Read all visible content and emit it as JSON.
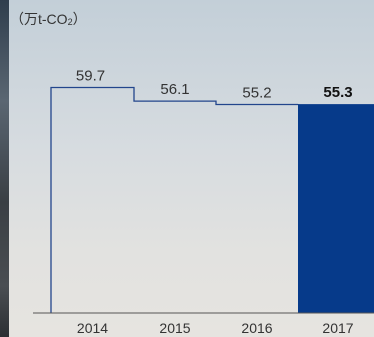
{
  "chart_data": {
    "type": "bar",
    "unit_label": "（万t-CO",
    "unit_sub": "2",
    "unit_suffix": "）",
    "categories": [
      "2014",
      "2015",
      "2016",
      "2017"
    ],
    "values": [
      59.7,
      56.1,
      55.2,
      55.3
    ],
    "value_labels": [
      "59.7",
      "56.1",
      "55.2",
      "55.3"
    ],
    "highlight_index": 3,
    "title": "",
    "xlabel": "",
    "ylabel": "",
    "grid": false,
    "legend": "none",
    "colors": {
      "highlight_fill": "#063a8a",
      "outline": "#22458c",
      "axis": "#555555",
      "text": "#333333",
      "highlight_text": "#111111"
    }
  }
}
